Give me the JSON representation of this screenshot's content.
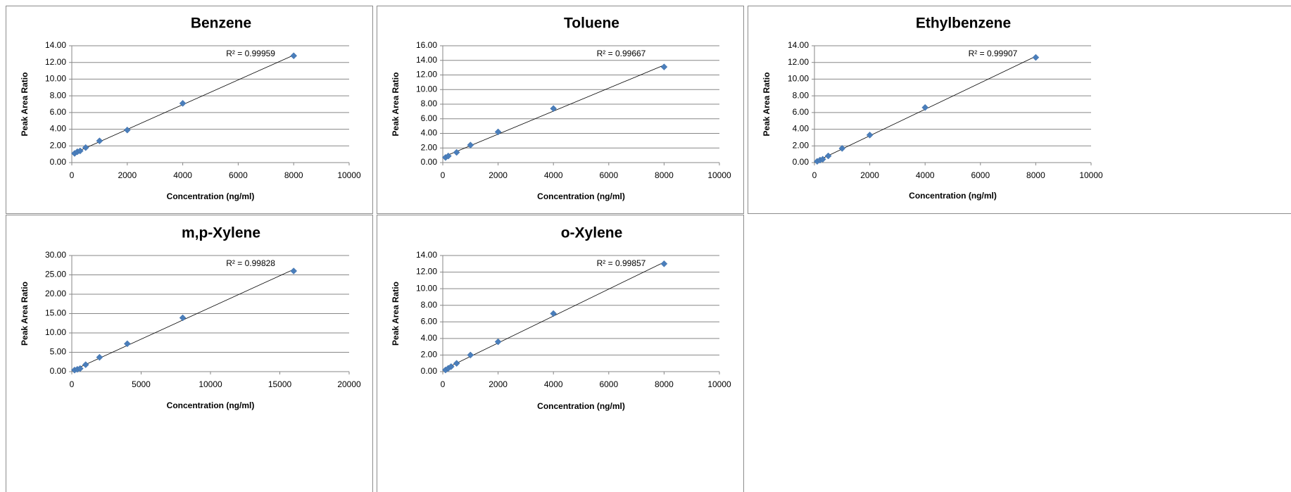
{
  "chart_data": [
    {
      "type": "scatter",
      "title": "Benzene",
      "x_label": "Concentration (ng/ml)",
      "y_label": "Peak Area Ratio",
      "annotation": "R² = 0.99959",
      "trendline": true,
      "grid": true,
      "color": "#4a7ebb",
      "x": [
        100,
        200,
        300,
        500,
        1000,
        2000,
        4000,
        8000
      ],
      "values": [
        1.1,
        1.3,
        1.4,
        1.8,
        2.6,
        3.9,
        7.1,
        12.8
      ],
      "xlim": [
        0,
        10000
      ],
      "xticks": [
        0,
        2000,
        4000,
        6000,
        8000,
        10000
      ],
      "ylim": [
        0,
        14
      ],
      "yticks": [
        {
          "value": 0,
          "label": "0.00"
        },
        {
          "value": 2,
          "label": "2.00"
        },
        {
          "value": 4,
          "label": "4.00"
        },
        {
          "value": 6,
          "label": "6.00"
        },
        {
          "value": 8,
          "label": "8.00"
        },
        {
          "value": 10,
          "label": "10.00"
        },
        {
          "value": 12,
          "label": "12.00"
        },
        {
          "value": 14,
          "label": "14.00"
        }
      ]
    },
    {
      "type": "scatter",
      "title": "Toluene",
      "x_label": "Concentration (ng/ml)",
      "y_label": "Peak Area Ratio",
      "annotation": "R² = 0.99667",
      "trendline": true,
      "grid": true,
      "color": "#4a7ebb",
      "x": [
        100,
        200,
        500,
        1000,
        2000,
        4000,
        8000
      ],
      "values": [
        0.7,
        0.9,
        1.4,
        2.4,
        4.2,
        7.4,
        13.1
      ],
      "xlim": [
        0,
        10000
      ],
      "xticks": [
        0,
        2000,
        4000,
        6000,
        8000,
        10000
      ],
      "ylim": [
        0,
        16
      ],
      "yticks": [
        {
          "value": 0,
          "label": "0.00"
        },
        {
          "value": 2,
          "label": "2.00"
        },
        {
          "value": 4,
          "label": "4.00"
        },
        {
          "value": 6,
          "label": "6.00"
        },
        {
          "value": 8,
          "label": "8.00"
        },
        {
          "value": 10,
          "label": "10.00"
        },
        {
          "value": 12,
          "label": "12.00"
        },
        {
          "value": 14,
          "label": "14.00"
        },
        {
          "value": 16,
          "label": "16.00"
        }
      ]
    },
    {
      "type": "scatter",
      "title": "Ethylbenzene",
      "x_label": "Concentration (ng/ml)",
      "y_label": "Peak Area Ratio",
      "annotation": "R² = 0.99907",
      "trendline": true,
      "grid": true,
      "color": "#4a7ebb",
      "x": [
        100,
        200,
        300,
        500,
        1000,
        2000,
        4000,
        8000
      ],
      "values": [
        0.15,
        0.3,
        0.4,
        0.8,
        1.7,
        3.3,
        6.6,
        12.6
      ],
      "xlim": [
        0,
        10000
      ],
      "xticks": [
        0,
        2000,
        4000,
        6000,
        8000,
        10000
      ],
      "ylim": [
        0,
        14
      ],
      "yticks": [
        {
          "value": 0,
          "label": "0.00"
        },
        {
          "value": 2,
          "label": "2.00"
        },
        {
          "value": 4,
          "label": "4.00"
        },
        {
          "value": 6,
          "label": "6.00"
        },
        {
          "value": 8,
          "label": "8.00"
        },
        {
          "value": 10,
          "label": "10.00"
        },
        {
          "value": 12,
          "label": "12.00"
        },
        {
          "value": 14,
          "label": "14.00"
        }
      ]
    },
    {
      "type": "scatter",
      "title": "m,p-Xylene",
      "x_label": "Concentration (ng/ml)",
      "y_label": "Peak Area Ratio",
      "annotation": "R² = 0.99828",
      "trendline": true,
      "grid": true,
      "color": "#4a7ebb",
      "x": [
        200,
        400,
        600,
        1000,
        2000,
        4000,
        8000,
        16000
      ],
      "values": [
        0.4,
        0.6,
        0.8,
        1.8,
        3.7,
        7.2,
        13.9,
        26.0
      ],
      "xlim": [
        0,
        20000
      ],
      "xticks": [
        0,
        5000,
        10000,
        15000,
        20000
      ],
      "ylim": [
        0,
        30
      ],
      "yticks": [
        {
          "value": 0,
          "label": "0.00"
        },
        {
          "value": 5,
          "label": "5.00"
        },
        {
          "value": 10,
          "label": "10.00"
        },
        {
          "value": 15,
          "label": "15.00"
        },
        {
          "value": 20,
          "label": "20.00"
        },
        {
          "value": 25,
          "label": "25.00"
        },
        {
          "value": 30,
          "label": "30.00"
        }
      ]
    },
    {
      "type": "scatter",
      "title": "o-Xylene",
      "x_label": "Concentration (ng/ml)",
      "y_label": "Peak Area Ratio",
      "annotation": "R² = 0.99857",
      "trendline": true,
      "grid": true,
      "color": "#4a7ebb",
      "x": [
        100,
        200,
        300,
        500,
        1000,
        2000,
        4000,
        8000
      ],
      "values": [
        0.2,
        0.4,
        0.6,
        1.0,
        2.0,
        3.6,
        7.0,
        13.0
      ],
      "xlim": [
        0,
        10000
      ],
      "xticks": [
        0,
        2000,
        4000,
        6000,
        8000,
        10000
      ],
      "ylim": [
        0,
        14
      ],
      "yticks": [
        {
          "value": 0,
          "label": "0.00"
        },
        {
          "value": 2,
          "label": "2.00"
        },
        {
          "value": 4,
          "label": "4.00"
        },
        {
          "value": 6,
          "label": "6.00"
        },
        {
          "value": 8,
          "label": "8.00"
        },
        {
          "value": 10,
          "label": "10.00"
        },
        {
          "value": 12,
          "label": "12.00"
        },
        {
          "value": 14,
          "label": "14.00"
        }
      ]
    }
  ]
}
